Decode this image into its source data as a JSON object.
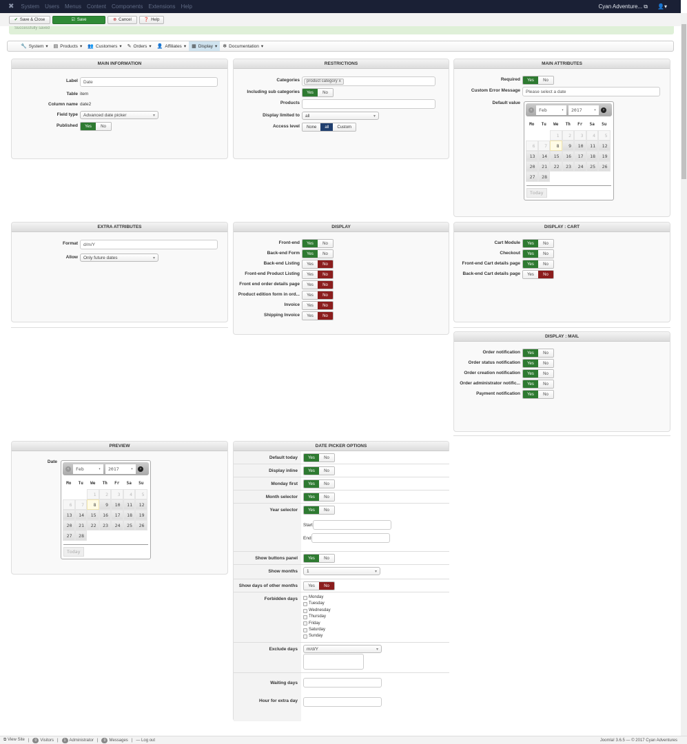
{
  "topbar": {
    "menu": [
      "System",
      "Users",
      "Menus",
      "Content",
      "Components",
      "Extensions",
      "Help"
    ],
    "site": "Cyan Adventure...",
    "site_icon": "external-link-icon",
    "user_icon": "user-icon"
  },
  "toolbar": {
    "save_close": "Save & Close",
    "save": "Save",
    "cancel": "Cancel",
    "help": "Help"
  },
  "message": "Successfully saved",
  "submenu": [
    {
      "label": "System",
      "icon": "🔧"
    },
    {
      "label": "Products",
      "icon": "▤"
    },
    {
      "label": "Customers",
      "icon": "👥"
    },
    {
      "label": "Orders",
      "icon": "✎"
    },
    {
      "label": "Affiliates",
      "icon": "👤"
    },
    {
      "label": "Display",
      "icon": "▦",
      "active": true
    },
    {
      "label": "Documentation",
      "icon": "✻"
    }
  ],
  "common": {
    "yes": "Yes",
    "no": "No"
  },
  "main_information": {
    "title": "MAIN INFORMATION",
    "label": {
      "label": "Label",
      "value": "Date"
    },
    "table": {
      "label": "Table",
      "value": "item"
    },
    "column": {
      "label": "Column name",
      "value": "date2"
    },
    "field_type": {
      "label": "Field type",
      "value": "Advanced date picker"
    },
    "published": {
      "label": "Published",
      "value": "Yes"
    }
  },
  "restrictions": {
    "title": "RESTRICTIONS",
    "categories": {
      "label": "Categories",
      "chip": "product category",
      "remove": "x"
    },
    "sub": {
      "label": "Including sub categories",
      "value": "Yes"
    },
    "products": {
      "label": "Products",
      "value": ""
    },
    "limited": {
      "label": "Display limited to",
      "value": "all"
    },
    "access": {
      "label": "Access level",
      "options": [
        "None",
        "all",
        "Custom"
      ],
      "selected": "all"
    }
  },
  "main_attributes": {
    "title": "MAIN ATTRIBUTES",
    "required": {
      "label": "Required",
      "value": "Yes"
    },
    "error": {
      "label": "Custom Error Message",
      "value": "Please select a date"
    },
    "default": {
      "label": "Default value"
    }
  },
  "calendar": {
    "month": "Feb",
    "year": "2017",
    "weekdays": [
      "Mo",
      "Tu",
      "We",
      "Th",
      "Fr",
      "Sa",
      "Su"
    ],
    "first_weekday_offset": 2,
    "days_in_month": 28,
    "today": 8,
    "selectable_from": 8,
    "today_button": "Today"
  },
  "extra_attributes": {
    "title": "EXTRA ATTRIBUTES",
    "format": {
      "label": "Format",
      "value": "d/m/Y"
    },
    "allow": {
      "label": "Allow",
      "value": "Only future dates"
    }
  },
  "display": {
    "title": "DISPLAY",
    "rows": [
      {
        "label": "Front-end",
        "value": "Yes"
      },
      {
        "label": "Back-end Form",
        "value": "Yes"
      },
      {
        "label": "Back-end Listing",
        "value": "No"
      },
      {
        "label": "Front-end Product Listing",
        "value": "No"
      },
      {
        "label": "Front end order details page",
        "value": "No"
      },
      {
        "label": "Product edition form in ord...",
        "value": "No"
      },
      {
        "label": "Invoice",
        "value": "No"
      },
      {
        "label": "Shipping Invoice",
        "value": "No"
      }
    ]
  },
  "display_cart": {
    "title": "DISPLAY : CART",
    "rows": [
      {
        "label": "Cart Module",
        "value": "Yes"
      },
      {
        "label": "Checkout",
        "value": "Yes"
      },
      {
        "label": "Front-end Cart details page",
        "value": "Yes"
      },
      {
        "label": "Back-end Cart details page",
        "value": "No"
      }
    ]
  },
  "display_mail": {
    "title": "DISPLAY : MAIL",
    "rows": [
      {
        "label": "Order notification",
        "value": "Yes"
      },
      {
        "label": "Order status notification",
        "value": "Yes"
      },
      {
        "label": "Order creation notification",
        "value": "Yes"
      },
      {
        "label": "Order administrator notific...",
        "value": "Yes"
      },
      {
        "label": "Payment notification",
        "value": "Yes"
      }
    ]
  },
  "preview": {
    "title": "PREVIEW",
    "date_label": "Date"
  },
  "date_picker_options": {
    "title": "DATE PICKER OPTIONS",
    "default_today": {
      "label": "Default today",
      "value": "Yes"
    },
    "display_inline": {
      "label": "Display inline",
      "value": "Yes"
    },
    "monday_first": {
      "label": "Monday first",
      "value": "Yes"
    },
    "month_selector": {
      "label": "Month selector",
      "value": "Yes"
    },
    "year_selector": {
      "label": "Year selector",
      "value": "Yes",
      "start_label": "Start",
      "start": "",
      "end_label": "End",
      "end": ""
    },
    "buttons_panel": {
      "label": "Show buttons panel",
      "value": "Yes"
    },
    "show_months": {
      "label": "Show months",
      "value": "1"
    },
    "other_months": {
      "label": "Show days of other months",
      "value": "No"
    },
    "forbidden": {
      "label": "Forbidden days",
      "days": [
        "Monday",
        "Tuesday",
        "Wednesday",
        "Thursday",
        "Friday",
        "Saturday",
        "Sunday"
      ]
    },
    "exclude": {
      "label": "Exclude days",
      "format": "m/d/Y",
      "value": ""
    },
    "waiting": {
      "label": "Waiting days",
      "value": ""
    },
    "hour_extra": {
      "label": "Hour for extra day",
      "value": ""
    }
  },
  "footer": {
    "view_site": "View Site",
    "visitors_count": "0",
    "visitors": "Visitors",
    "admin_count": "1",
    "admin": "Administrator",
    "messages_count": "0",
    "messages": "Messages",
    "logout": "Log out",
    "version": "Joomla! 3.6.5 — © 2017 Cyan Adventures"
  }
}
